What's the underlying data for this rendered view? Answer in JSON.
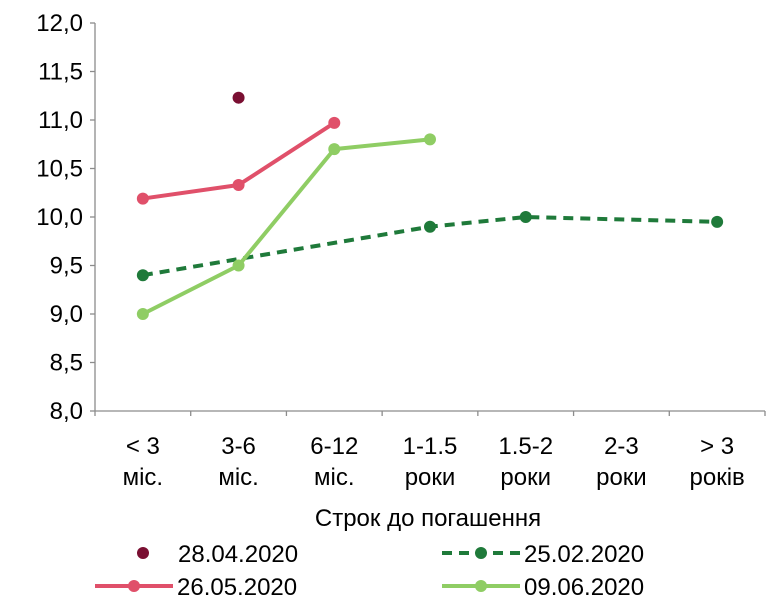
{
  "chart_data": {
    "type": "line",
    "xlabel": "Строк до погашення",
    "ylabel": "",
    "ylim": [
      8.0,
      12.0
    ],
    "yticks": [
      "8,0",
      "8,5",
      "9,0",
      "9,5",
      "10,0",
      "10,5",
      "11,0",
      "11,5",
      "12,0"
    ],
    "categories": [
      [
        "< 3",
        "міс."
      ],
      [
        "3-6",
        "міс."
      ],
      [
        "6-12",
        "міс."
      ],
      [
        "1-1.5",
        "роки"
      ],
      [
        "1.5-2",
        "роки"
      ],
      [
        "2-3",
        "роки"
      ],
      [
        "> 3",
        "років"
      ]
    ],
    "series": [
      {
        "name": "28.04.2020",
        "style": "markers",
        "color": "#7a0f32",
        "values": [
          null,
          11.23,
          null,
          null,
          null,
          null,
          null
        ]
      },
      {
        "name": "25.02.2020",
        "style": "dashed",
        "color": "#1f7a3a",
        "values": [
          9.4,
          null,
          null,
          9.9,
          10.0,
          null,
          9.95
        ]
      },
      {
        "name": "26.05.2020",
        "style": "solid",
        "color": "#e0506a",
        "values": [
          10.19,
          10.33,
          10.97,
          null,
          null,
          null,
          null
        ]
      },
      {
        "name": "09.06.2020",
        "style": "solid",
        "color": "#8fcd64",
        "values": [
          9.0,
          9.5,
          10.7,
          10.8,
          null,
          null,
          null
        ]
      }
    ],
    "legend_position": "bottom",
    "grid": false
  }
}
